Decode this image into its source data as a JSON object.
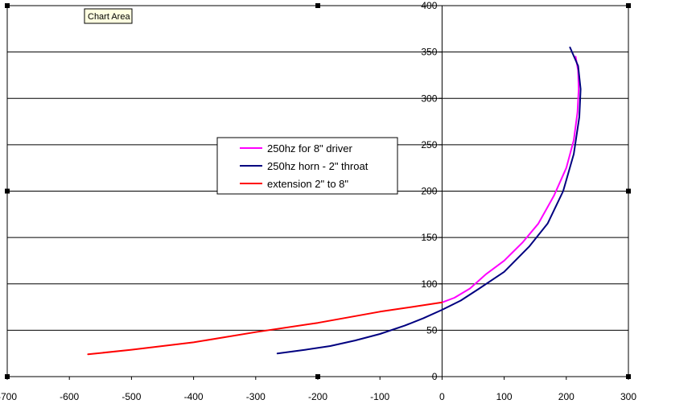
{
  "tooltip": "Chart Area",
  "chart_data": {
    "type": "line",
    "title": "",
    "xlabel": "",
    "ylabel": "",
    "xlim": [
      -700,
      300
    ],
    "ylim": [
      0,
      400
    ],
    "x_ticks": [
      -700,
      -600,
      -500,
      -400,
      -300,
      -200,
      -100,
      0,
      100,
      200,
      300
    ],
    "y_ticks": [
      0,
      50,
      100,
      150,
      200,
      250,
      300,
      350,
      400
    ],
    "grid": "horizontal",
    "legend_position": "center",
    "series": [
      {
        "name": "250hz for 8\" driver",
        "color": "#ff00ff",
        "points": [
          [
            0,
            80
          ],
          [
            20,
            85
          ],
          [
            45,
            95
          ],
          [
            70,
            110
          ],
          [
            100,
            125
          ],
          [
            130,
            145
          ],
          [
            155,
            165
          ],
          [
            180,
            195
          ],
          [
            200,
            225
          ],
          [
            212,
            255
          ],
          [
            218,
            285
          ],
          [
            220,
            310
          ],
          [
            219,
            330
          ],
          [
            215,
            345
          ]
        ]
      },
      {
        "name": "250hz horn - 2\" throat",
        "color": "#000080",
        "points": [
          [
            -265,
            25
          ],
          [
            -220,
            29
          ],
          [
            -180,
            33
          ],
          [
            -140,
            39
          ],
          [
            -100,
            46
          ],
          [
            -60,
            55
          ],
          [
            -30,
            63
          ],
          [
            0,
            72
          ],
          [
            30,
            82
          ],
          [
            60,
            95
          ],
          [
            100,
            113
          ],
          [
            140,
            140
          ],
          [
            170,
            165
          ],
          [
            195,
            200
          ],
          [
            212,
            240
          ],
          [
            221,
            280
          ],
          [
            223,
            310
          ],
          [
            219,
            335
          ],
          [
            206,
            355
          ]
        ]
      },
      {
        "name": "extension 2\" to 8\"",
        "color": "#ff0000",
        "points": [
          [
            -570,
            24
          ],
          [
            -500,
            29
          ],
          [
            -400,
            37
          ],
          [
            -300,
            48
          ],
          [
            -200,
            58
          ],
          [
            -100,
            70
          ],
          [
            -50,
            75
          ],
          [
            0,
            80
          ]
        ]
      }
    ]
  }
}
